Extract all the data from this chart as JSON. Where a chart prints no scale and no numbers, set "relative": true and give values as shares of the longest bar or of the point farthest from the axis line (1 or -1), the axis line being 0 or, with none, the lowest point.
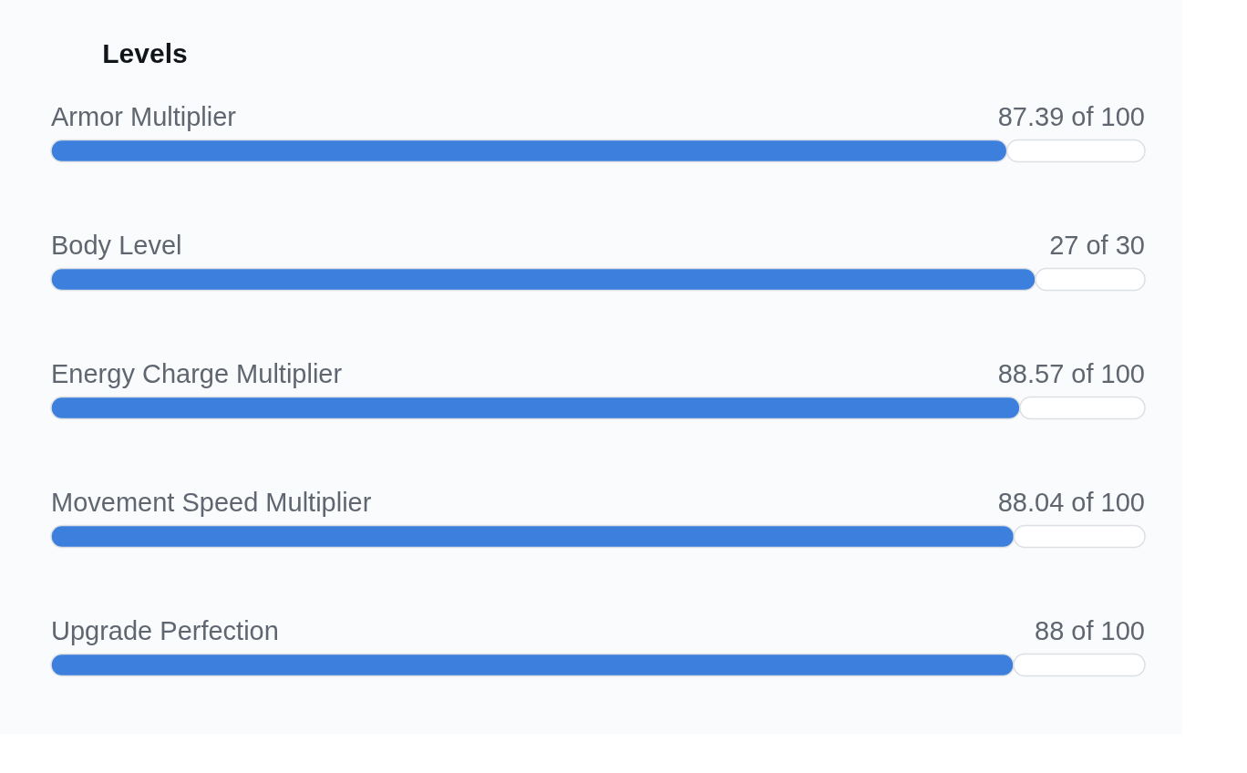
{
  "chart_data": {
    "type": "bar",
    "title": "Levels",
    "orientation": "horizontal",
    "stacked": true,
    "relative": true,
    "categories": [
      "Armor Multiplier",
      "Body Level",
      "Energy Charge Multiplier",
      "Movement Speed Multiplier",
      "Upgrade Perfection"
    ],
    "series": [
      {
        "color": "#3d7fdc",
        "values": [
          0.8739,
          0.9,
          0.8857,
          0.8804,
          0.88
        ]
      },
      {
        "color": "#ffffff",
        "values": [
          0.1261,
          0.1,
          0.1143,
          0.1196,
          0.12
        ]
      }
    ],
    "annotations": [
      "87.39 of 100",
      "27 of 30",
      "88.57 of 100",
      "88.04 of 100",
      "88 of 100"
    ]
  }
}
